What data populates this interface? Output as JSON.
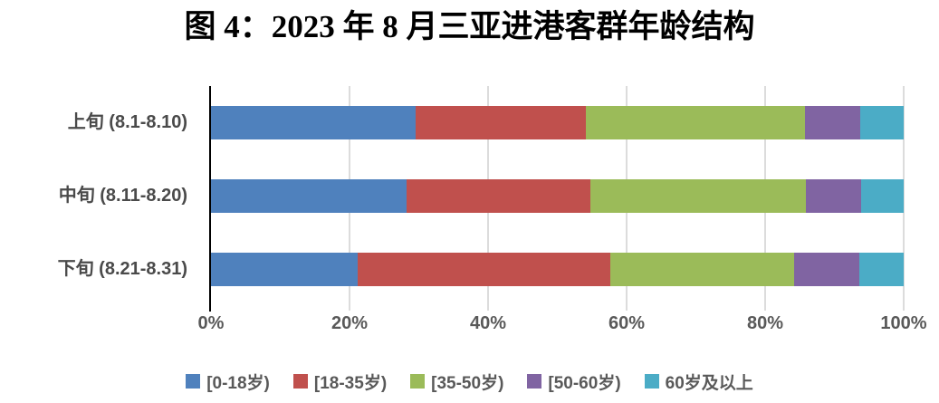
{
  "title": "图 4：2023 年 8 月三亚进港客群年龄结构",
  "chart_data": {
    "type": "bar",
    "orientation": "horizontal-stacked",
    "title": "图 4：2023 年 8 月三亚进港客群年龄结构",
    "categories": [
      "上旬 (8.1-8.10)",
      "中旬 (8.11-8.20)",
      "下旬 (8.21-8.31)"
    ],
    "series": [
      {
        "name": "[0-18岁)",
        "color": "#4F81BD",
        "values": [
          29.5,
          28.3,
          21.2
        ]
      },
      {
        "name": "[18-35岁)",
        "color": "#C0504D",
        "values": [
          24.6,
          26.5,
          36.4
        ]
      },
      {
        "name": "[35-50岁)",
        "color": "#9BBB59",
        "values": [
          31.6,
          31.1,
          26.6
        ]
      },
      {
        "name": "[50-60岁)",
        "color": "#8064A2",
        "values": [
          8.0,
          8.0,
          9.4
        ]
      },
      {
        "name": "60岁及以上",
        "color": "#4BACC6",
        "values": [
          6.3,
          6.1,
          6.4
        ]
      }
    ],
    "x_ticks": [
      "0%",
      "20%",
      "40%",
      "60%",
      "80%",
      "100%"
    ],
    "xlim": [
      0,
      100
    ],
    "xlabel": "",
    "ylabel": "",
    "grid": "vertical",
    "legend_position": "bottom"
  },
  "colors": {
    "axis_line": "#000000",
    "gridline": "#dcdcdc",
    "tick_label": "#595959",
    "category_label": "#4a4a4a",
    "background": "#ffffff"
  }
}
